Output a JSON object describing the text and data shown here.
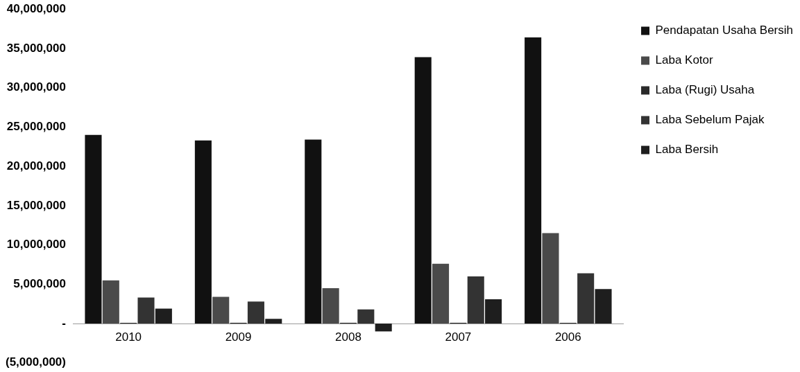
{
  "chart_data": {
    "type": "bar",
    "categories": [
      "2010",
      "2009",
      "2008",
      "2007",
      "2006"
    ],
    "series": [
      {
        "name": "Pendapatan Usaha Bersih",
        "color": "#111111",
        "values": [
          24000000,
          23300000,
          23400000,
          33900000,
          36400000
        ]
      },
      {
        "name": "Laba Kotor",
        "color": "#4a4a4a",
        "values": [
          5500000,
          3400000,
          4500000,
          7600000,
          11500000
        ]
      },
      {
        "name": "Laba (Rugi) Usaha",
        "color": "#2a2a2a",
        "values": [
          100000,
          100000,
          100000,
          100000,
          100000
        ]
      },
      {
        "name": "Laba Sebelum Pajak",
        "color": "#333333",
        "values": [
          3300000,
          2800000,
          1800000,
          6000000,
          6400000
        ]
      },
      {
        "name": "Laba Bersih",
        "color": "#1e1e1e",
        "values": [
          1900000,
          600000,
          -1000000,
          3100000,
          4400000
        ]
      }
    ],
    "ylim": [
      -5000000,
      40000000
    ],
    "yticks": [
      {
        "value": -5000000,
        "label": "(5,000,000)"
      },
      {
        "value": 0,
        "label": "-"
      },
      {
        "value": 5000000,
        "label": "5,000,000"
      },
      {
        "value": 10000000,
        "label": "10,000,000"
      },
      {
        "value": 15000000,
        "label": "15,000,000"
      },
      {
        "value": 20000000,
        "label": "20,000,000"
      },
      {
        "value": 25000000,
        "label": "25,000,000"
      },
      {
        "value": 30000000,
        "label": "30,000,000"
      },
      {
        "value": 35000000,
        "label": "35,000,000"
      },
      {
        "value": 40000000,
        "label": "40,000,000"
      }
    ],
    "grid": false,
    "legend": "top right"
  }
}
